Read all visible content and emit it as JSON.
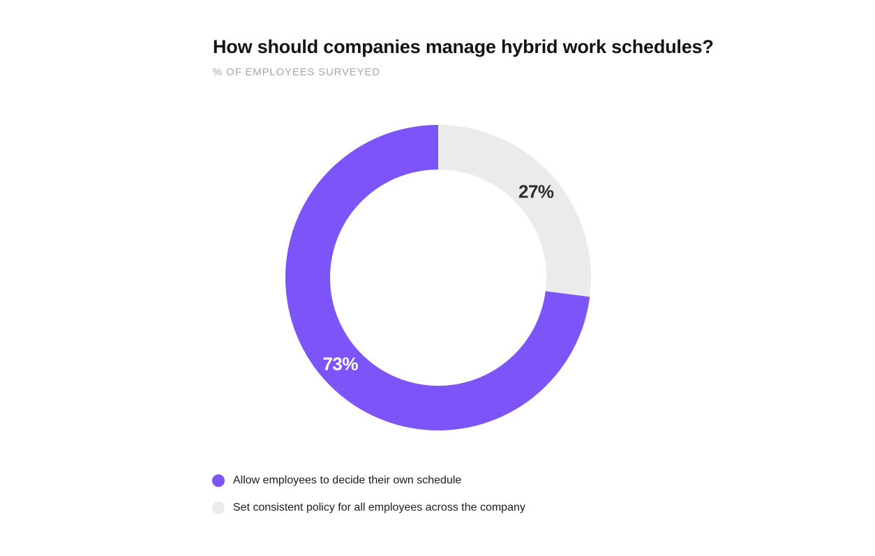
{
  "header": {
    "title": "How should companies manage hybrid work schedules?",
    "subtitle": "% OF EMPLOYEES SURVEYED"
  },
  "colors": {
    "accent_purple": "#7C54F8",
    "neutral_gray": "#EBEBEB",
    "title_text": "#141414",
    "subtitle_text": "#A8A8A8",
    "background": "#FFFFFF"
  },
  "chart_data": {
    "type": "pie",
    "donut": true,
    "title": "How should companies manage hybrid work schedules?",
    "subtitle": "% OF EMPLOYEES SURVEYED",
    "units": "%",
    "start_angle_deg": 0,
    "direction": "clockwise",
    "slices": [
      {
        "category": "Set consistent policy for all employees across the company",
        "value": 27,
        "color": "#EBEBEB",
        "data_label": "27%",
        "data_label_color": "#2D2D2D"
      },
      {
        "category": "Allow employees to decide their own schedule",
        "value": 73,
        "color": "#7C54F8",
        "data_label": "73%",
        "data_label_color": "#FFFFFF"
      }
    ],
    "legend": {
      "position": "bottom-left",
      "items": [
        {
          "label": "Allow employees to decide their own schedule",
          "color": "#7C54F8"
        },
        {
          "label": "Set consistent policy for all employees across the company",
          "color": "#EBEBEB"
        }
      ]
    }
  }
}
